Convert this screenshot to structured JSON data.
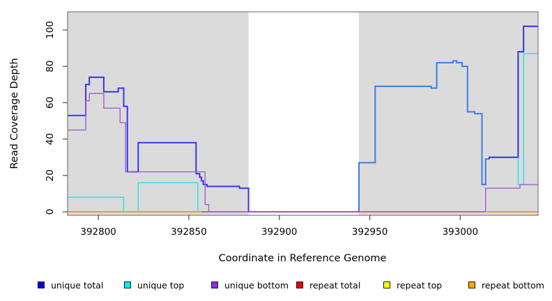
{
  "chart_data": {
    "type": "line",
    "subtype": "step-coverage-plot",
    "title": "",
    "xlabel": "Coordinate in Reference Genome",
    "ylabel": "Read Coverage Depth",
    "xlim": [
      392783,
      393043
    ],
    "ylim": [
      0,
      110
    ],
    "x_ticks": [
      "392800",
      "392850",
      "392900",
      "392950",
      "393000"
    ],
    "x_tick_values": [
      392800,
      392850,
      392900,
      392950,
      393000
    ],
    "y_ticks": [
      "0",
      "20",
      "40",
      "60",
      "80",
      "100"
    ],
    "y_tick_values": [
      0,
      20,
      40,
      60,
      80,
      100
    ],
    "grid": false,
    "plot_bg": "#dbdbdb",
    "border_color": "#7d7d7d",
    "tick_color": "#4a4a4a",
    "gap_region": {
      "x0": 392883,
      "x1": 392944,
      "color": "#ffffff"
    },
    "legend_position": "bottom",
    "legend": [
      {
        "label": "unique total",
        "color": "#0000e0"
      },
      {
        "label": "unique top",
        "color": "#00eeee"
      },
      {
        "label": "unique bottom",
        "color": "#8b2be2"
      },
      {
        "label": "repeat total",
        "color": "#e60000"
      },
      {
        "label": "repeat top",
        "color": "#ffff00"
      },
      {
        "label": "repeat bottom",
        "color": "#ffa500"
      }
    ],
    "series": [
      {
        "name": "unique total",
        "segments": [
          {
            "color": "#3535f0",
            "width": 2,
            "points": [
              [
                392783,
                53
              ],
              [
                392793,
                53
              ],
              [
                392793,
                70
              ],
              [
                392795,
                70
              ],
              [
                392795,
                74
              ],
              [
                392803,
                74
              ],
              [
                392803,
                66
              ],
              [
                392811,
                66
              ],
              [
                392811,
                68
              ],
              [
                392814,
                68
              ],
              [
                392814,
                58
              ],
              [
                392816,
                58
              ],
              [
                392816,
                22
              ],
              [
                392822,
                22
              ],
              [
                392822,
                38
              ],
              [
                392854,
                38
              ],
              [
                392854,
                21
              ],
              [
                392856,
                21
              ],
              [
                392856,
                19
              ],
              [
                392857,
                19
              ],
              [
                392857,
                17
              ],
              [
                392858,
                17
              ],
              [
                392858,
                15
              ],
              [
                392860,
                15
              ],
              [
                392860,
                14
              ],
              [
                392878,
                14
              ],
              [
                392878,
                13
              ],
              [
                392883,
                13
              ],
              [
                392883,
                0
              ],
              [
                392944,
                0
              ]
            ]
          },
          {
            "color": "#3c7ce4",
            "width": 2,
            "points": [
              [
                392944,
                0
              ],
              [
                392944,
                27
              ],
              [
                392953,
                27
              ],
              [
                392953,
                69
              ],
              [
                392984,
                69
              ],
              [
                392984,
                68
              ],
              [
                392987,
                68
              ],
              [
                392987,
                82
              ],
              [
                392996,
                82
              ],
              [
                392996,
                83
              ],
              [
                392998,
                83
              ],
              [
                392998,
                82
              ],
              [
                393001,
                82
              ],
              [
                393001,
                80
              ],
              [
                393004,
                80
              ],
              [
                393004,
                55
              ],
              [
                393008,
                55
              ],
              [
                393008,
                54
              ],
              [
                393012,
                54
              ],
              [
                393012,
                15
              ],
              [
                393014,
                15
              ],
              [
                393014,
                29
              ],
              [
                393016,
                29
              ]
            ]
          },
          {
            "color": "#3232d8",
            "width": 2,
            "points": [
              [
                393016,
                29
              ],
              [
                393016,
                30
              ],
              [
                393032,
                30
              ],
              [
                393032,
                88
              ],
              [
                393035,
                88
              ],
              [
                393035,
                102
              ],
              [
                393043,
                102
              ]
            ]
          }
        ]
      },
      {
        "name": "unique top",
        "segments": [
          {
            "color": "#25dfe8",
            "width": 1.4,
            "points": [
              [
                392783,
                8
              ],
              [
                392814,
                8
              ],
              [
                392814,
                0
              ],
              [
                392822,
                0
              ],
              [
                392822,
                16
              ],
              [
                392855,
                16
              ],
              [
                392855,
                0
              ],
              [
                392857,
                0
              ]
            ]
          },
          {
            "color": "#25dfe8",
            "width": 1.4,
            "points": [
              [
                393032,
                30
              ],
              [
                393032,
                15
              ],
              [
                393035,
                15
              ],
              [
                393035,
                87
              ],
              [
                393043,
                87
              ]
            ]
          }
        ]
      },
      {
        "name": "repeat total",
        "segments": [
          {
            "color": "#c24068",
            "width": 1.6,
            "points": [
              [
                392857,
                0
              ],
              [
                393014,
                0
              ]
            ]
          }
        ]
      },
      {
        "name": "unique bottom",
        "segments": [
          {
            "color": "#a45cd8",
            "width": 1.4,
            "points": [
              [
                392783,
                45
              ],
              [
                392793,
                45
              ],
              [
                392793,
                61
              ],
              [
                392795,
                61
              ],
              [
                392795,
                65
              ],
              [
                392803,
                65
              ],
              [
                392803,
                57
              ],
              [
                392812,
                57
              ],
              [
                392812,
                49
              ],
              [
                392815,
                49
              ],
              [
                392815,
                22
              ],
              [
                392859,
                22
              ],
              [
                392859,
                4
              ],
              [
                392861,
                4
              ],
              [
                392861,
                0
              ],
              [
                392944,
                0
              ]
            ]
          },
          {
            "color": "#a45cd8",
            "width": 1.4,
            "points": [
              [
                393014,
                0
              ],
              [
                393014,
                13
              ],
              [
                393033,
                13
              ],
              [
                393033,
                15
              ],
              [
                393043,
                15
              ]
            ]
          }
        ]
      },
      {
        "name": "repeat top",
        "segments": []
      },
      {
        "name": "repeat bottom",
        "segments": [
          {
            "color": "#ff9a28",
            "width": 2,
            "points": [
              [
                392783,
                0
              ],
              [
                392857,
                0
              ]
            ]
          },
          {
            "color": "#ff9a28",
            "width": 2,
            "points": [
              [
                393014,
                0
              ],
              [
                393043,
                0
              ]
            ]
          }
        ]
      }
    ]
  }
}
